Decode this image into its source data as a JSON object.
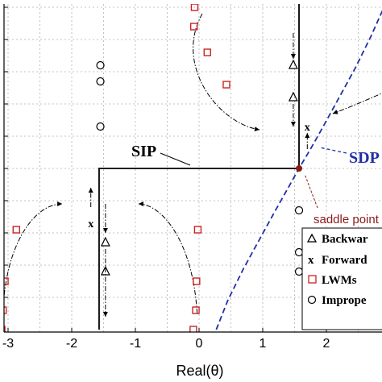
{
  "chart_data": {
    "type": "scatter",
    "title": "",
    "xlabel": "Real(θ)",
    "ylabel": "",
    "xlim": [
      -3.15,
      2.95
    ],
    "ylim": [
      -2.5,
      2.6
    ],
    "xticks": [
      -3,
      -2,
      -1,
      0,
      1,
      2
    ],
    "xtick_labels": [
      "-3",
      "-2",
      "-1",
      "0",
      "1",
      "2"
    ],
    "yticks": [
      -2,
      -1.5,
      -1,
      -0.5,
      0,
      0.5,
      1,
      1.5,
      2,
      2.5
    ],
    "grid": true,
    "legend_position": "bottom-right",
    "colors": {
      "lwm": "#cc2222",
      "sdp": "#1f2fa8",
      "saddle": "#8b1a1a",
      "axis": "#000000",
      "grid": "#b0b0b0"
    },
    "legend": [
      {
        "marker": "triangle",
        "label": "Backwar"
      },
      {
        "marker": "x",
        "label": "Forward"
      },
      {
        "marker": "red-square",
        "label": "LWMs"
      },
      {
        "marker": "circle",
        "label": "Imprope"
      }
    ],
    "annotations": {
      "sip": "SIP",
      "sdp": "SDP",
      "saddle_point": "saddle point"
    },
    "series": [
      {
        "name": "LWMs",
        "marker": "red-square",
        "x": [
          -0.07,
          -0.08,
          0.13,
          0.43,
          -2.87,
          -3.05,
          -3.08,
          -3.1,
          -0.02,
          -0.04,
          -0.05,
          -0.09,
          2.95
        ],
        "y": [
          2.5,
          2.2,
          1.8,
          1.3,
          -0.95,
          -1.75,
          -2.2,
          -2.5,
          -0.95,
          -1.75,
          -2.2,
          -2.5,
          1.3
        ]
      },
      {
        "name": "Improper",
        "marker": "circle",
        "x": [
          -1.55,
          -1.55,
          -1.55,
          1.57,
          1.57,
          1.57
        ],
        "y": [
          1.6,
          1.35,
          0.65,
          -0.65,
          -1.3,
          -1.6
        ]
      },
      {
        "name": "Forward",
        "marker": "x",
        "x": [
          -1.7,
          1.7
        ],
        "y": [
          -0.85,
          0.65
        ]
      },
      {
        "name": "Backward",
        "marker": "triangle",
        "x": [
          -1.47,
          -1.47,
          1.48,
          1.48
        ],
        "y": [
          -1.15,
          -1.6,
          1.6,
          1.1
        ]
      },
      {
        "name": "Saddle point",
        "marker": "dot",
        "x": [
          1.57
        ],
        "y": [
          0.0
        ]
      }
    ],
    "sip_path": {
      "x": [
        -1.57,
        -1.57,
        1.57,
        1.57
      ],
      "y": [
        -2.5,
        0.0,
        0.0,
        2.6
      ]
    },
    "sdp_curve": {
      "x": [
        0.27,
        0.45,
        0.7,
        0.95,
        1.2,
        1.4,
        1.57,
        1.75,
        1.95,
        2.2,
        2.45,
        2.7,
        2.95
      ],
      "y": [
        -2.5,
        -2.05,
        -1.55,
        -1.1,
        -0.65,
        -0.3,
        0.0,
        0.3,
        0.65,
        1.1,
        1.55,
        2.05,
        2.6
      ]
    }
  }
}
